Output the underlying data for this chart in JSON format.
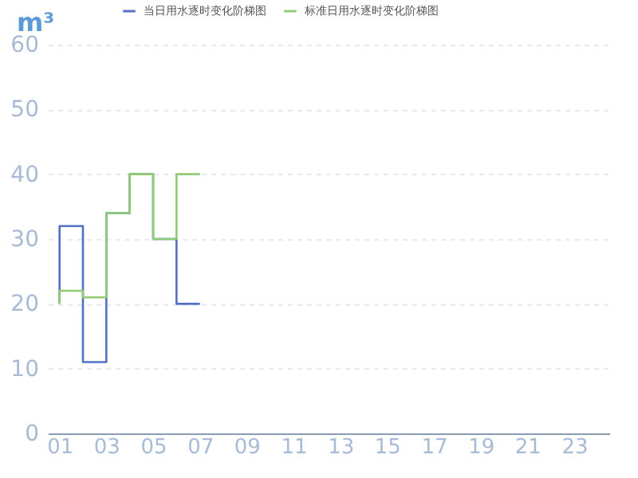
{
  "chart_data": {
    "type": "step",
    "ylabel": "m³",
    "categories": [
      "01",
      null,
      "03",
      null,
      "05",
      null,
      "07",
      null,
      "09",
      null,
      "11",
      null,
      "13",
      null,
      "15",
      null,
      "17",
      null,
      "19",
      null,
      "21",
      null,
      "23",
      null
    ],
    "series": [
      {
        "name": "当日用水逐时变化阶梯图",
        "color": "#5470c6",
        "values": [
          20,
          32,
          11,
          34,
          40,
          30,
          20,
          null,
          null,
          null,
          null,
          null,
          null,
          null,
          null,
          null,
          null,
          null,
          null,
          null,
          null,
          null,
          null,
          null
        ]
      },
      {
        "name": "标准日用水逐时变化阶梯图",
        "color": "#91cc75",
        "values": [
          20,
          22,
          21,
          34,
          40,
          30,
          40,
          null,
          null,
          null,
          null,
          null,
          null,
          null,
          null,
          null,
          null,
          null,
          null,
          null,
          null,
          null,
          null,
          null
        ]
      }
    ],
    "ylim": [
      0,
      60
    ],
    "yticks": [
      0,
      10,
      20,
      30,
      40,
      50,
      60
    ],
    "grid": "y",
    "legend": "top"
  }
}
